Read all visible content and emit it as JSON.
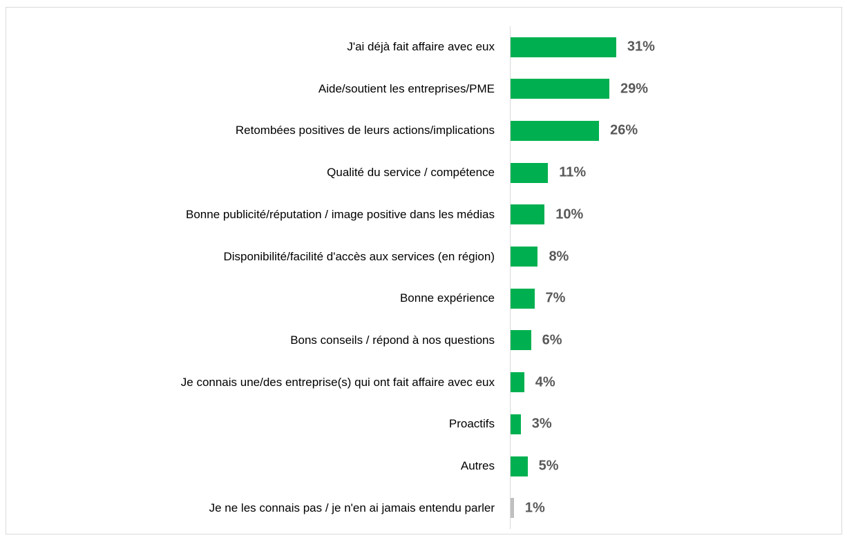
{
  "chart_data": {
    "type": "barh",
    "categories": [
      "J'ai déjà fait affaire avec eux",
      "Aide/soutient les entreprises/PME",
      "Retombées positives de leurs actions/implications",
      "Qualité du service / compétence",
      "Bonne publicité/réputation / image positive dans les médias",
      "Disponibilité/facilité d'accès aux services (en région)",
      "Bonne expérience",
      "Bons conseils / répond à nos questions",
      "Je connais une/des entreprise(s) qui ont fait affaire avec eux",
      "Proactifs",
      "Autres",
      "Je ne les connais pas / je n'en ai jamais entendu parler"
    ],
    "values": [
      31,
      29,
      26,
      11,
      10,
      8,
      7,
      6,
      4,
      3,
      5,
      1
    ],
    "value_labels": [
      "31%",
      "29%",
      "26%",
      "11%",
      "10%",
      "8%",
      "7%",
      "6%",
      "4%",
      "3%",
      "5%",
      "1%"
    ],
    "colors": [
      "#00b050",
      "#00b050",
      "#00b050",
      "#00b050",
      "#00b050",
      "#00b050",
      "#00b050",
      "#00b050",
      "#00b050",
      "#00b050",
      "#00b050",
      "#bfbfbf"
    ]
  }
}
